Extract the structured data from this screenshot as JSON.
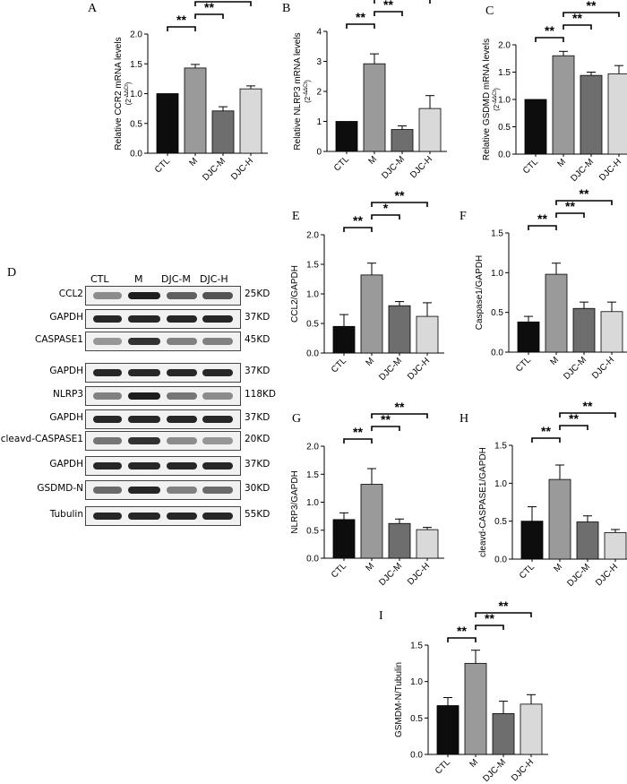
{
  "chart_data": [
    {
      "panel": "A",
      "type": "bar",
      "ylabel": "Relative CCR2 mRNA levels",
      "ylabel_sub": "(2",
      "categories": [
        "CTL",
        "M",
        "DJC-M",
        "DJC-H"
      ],
      "values": [
        1.0,
        1.43,
        0.71,
        1.08
      ],
      "errors": [
        0,
        0.06,
        0.07,
        0.05
      ],
      "ylim": [
        0,
        2.0
      ],
      "yticks": [
        "0.0",
        "0.5",
        "1.0",
        "1.5",
        "2.0"
      ],
      "sig": [
        {
          "from": 0,
          "to": 1,
          "label": "**"
        },
        {
          "from": 1,
          "to": 2,
          "label": "**"
        },
        {
          "from": 1,
          "to": 3,
          "label": "**"
        }
      ]
    },
    {
      "panel": "B",
      "type": "bar",
      "ylabel": "Relative NLRP3 mRNA levels",
      "ylabel_sub": "(2",
      "categories": [
        "CTL",
        "M",
        "DJC-M",
        "DJC-H"
      ],
      "values": [
        1.0,
        2.92,
        0.73,
        1.43
      ],
      "errors": [
        0,
        0.33,
        0.12,
        0.43
      ],
      "ylim": [
        0,
        4
      ],
      "yticks": [
        "0",
        "1",
        "2",
        "3",
        "4"
      ],
      "sig": [
        {
          "from": 0,
          "to": 1,
          "label": "**"
        },
        {
          "from": 1,
          "to": 2,
          "label": "**"
        },
        {
          "from": 1,
          "to": 3,
          "label": "**"
        }
      ]
    },
    {
      "panel": "C",
      "type": "bar",
      "ylabel": "Relative GSDMD mRNA levels",
      "ylabel_sub": "(2",
      "categories": [
        "CTL",
        "M",
        "DJC-M",
        "DJC-H"
      ],
      "values": [
        1.0,
        1.8,
        1.44,
        1.47
      ],
      "errors": [
        0,
        0.08,
        0.06,
        0.15
      ],
      "ylim": [
        0,
        2.0
      ],
      "yticks": [
        "0.0",
        "0.5",
        "1.0",
        "1.5",
        "2.0"
      ],
      "sig": [
        {
          "from": 0,
          "to": 1,
          "label": "**"
        },
        {
          "from": 1,
          "to": 2,
          "label": "**"
        },
        {
          "from": 1,
          "to": 3,
          "label": "**"
        }
      ]
    },
    {
      "panel": "E",
      "type": "bar",
      "ylabel": "CCL2/GAPDH",
      "categories": [
        "CTL",
        "M",
        "DJC-M",
        "DJC-H"
      ],
      "values": [
        0.45,
        1.32,
        0.8,
        0.62
      ],
      "errors": [
        0.2,
        0.2,
        0.07,
        0.23
      ],
      "ylim": [
        0,
        2.0
      ],
      "yticks": [
        "0.0",
        "0.5",
        "1.0",
        "1.5",
        "2.0"
      ],
      "sig": [
        {
          "from": 0,
          "to": 1,
          "label": "**"
        },
        {
          "from": 1,
          "to": 2,
          "label": "*"
        },
        {
          "from": 1,
          "to": 3,
          "label": "**"
        }
      ]
    },
    {
      "panel": "F",
      "type": "bar",
      "ylabel": "Caspase1/GAPDH",
      "categories": [
        "CTL",
        "M",
        "DJC-M",
        "DJC-H"
      ],
      "values": [
        0.38,
        0.98,
        0.55,
        0.51
      ],
      "errors": [
        0.07,
        0.14,
        0.08,
        0.12
      ],
      "ylim": [
        0,
        1.5
      ],
      "yticks": [
        "0.0",
        "0.5",
        "1.0",
        "1.5"
      ],
      "sig": [
        {
          "from": 0,
          "to": 1,
          "label": "**"
        },
        {
          "from": 1,
          "to": 2,
          "label": "**"
        },
        {
          "from": 1,
          "to": 3,
          "label": "**"
        }
      ]
    },
    {
      "panel": "G",
      "type": "bar",
      "ylabel": "NLRP3/GAPDH",
      "categories": [
        "CTL",
        "M",
        "DJC-M",
        "DJC-H"
      ],
      "values": [
        0.69,
        1.32,
        0.62,
        0.51
      ],
      "errors": [
        0.12,
        0.28,
        0.08,
        0.04
      ],
      "ylim": [
        0,
        2.0
      ],
      "yticks": [
        "0.0",
        "0.5",
        "1.0",
        "1.5",
        "2.0"
      ],
      "sig": [
        {
          "from": 0,
          "to": 1,
          "label": "**"
        },
        {
          "from": 1,
          "to": 2,
          "label": "**"
        },
        {
          "from": 1,
          "to": 3,
          "label": "**"
        }
      ]
    },
    {
      "panel": "H",
      "type": "bar",
      "ylabel": "cleavd-CASPASE1/GAPDH",
      "categories": [
        "CTL",
        "M",
        "DJC-M",
        "DJC-H"
      ],
      "values": [
        0.5,
        1.05,
        0.49,
        0.35
      ],
      "errors": [
        0.19,
        0.19,
        0.08,
        0.04
      ],
      "ylim": [
        0,
        1.5
      ],
      "yticks": [
        "0.0",
        "0.5",
        "1.0",
        "1.5"
      ],
      "sig": [
        {
          "from": 0,
          "to": 1,
          "label": "**"
        },
        {
          "from": 1,
          "to": 2,
          "label": "**"
        },
        {
          "from": 1,
          "to": 3,
          "label": "**"
        }
      ]
    },
    {
      "panel": "I",
      "type": "bar",
      "ylabel": "GSMDM-N/Tubulin",
      "categories": [
        "CTL",
        "M",
        "DJC-M",
        "DJC-H"
      ],
      "values": [
        0.67,
        1.25,
        0.56,
        0.69
      ],
      "errors": [
        0.11,
        0.18,
        0.17,
        0.13
      ],
      "ylim": [
        0,
        1.5
      ],
      "yticks": [
        "0.0",
        "0.5",
        "1.0",
        "1.5"
      ],
      "sig": [
        {
          "from": 0,
          "to": 1,
          "label": "**"
        },
        {
          "from": 1,
          "to": 2,
          "label": "**"
        },
        {
          "from": 1,
          "to": 3,
          "label": "**"
        }
      ]
    }
  ],
  "western_blot": {
    "panel": "D",
    "lanes": [
      "CTL",
      "M",
      "DJC-M",
      "DJC-H"
    ],
    "rows": [
      {
        "label": "CCL2",
        "size": "25KD",
        "intensity": [
          0.45,
          0.95,
          0.65,
          0.7
        ]
      },
      {
        "label": "GAPDH",
        "size": "37KD",
        "intensity": [
          0.9,
          0.9,
          0.9,
          0.9
        ]
      },
      {
        "label": "CASPASE1",
        "size": "45KD",
        "intensity": [
          0.4,
          0.85,
          0.5,
          0.5
        ]
      },
      {
        "label": "GAPDH",
        "size": "37KD",
        "intensity": [
          0.9,
          0.9,
          0.9,
          0.9
        ]
      },
      {
        "label": "NLRP3",
        "size": "118KD",
        "intensity": [
          0.5,
          0.95,
          0.55,
          0.45
        ]
      },
      {
        "label": "GAPDH",
        "size": "37KD",
        "intensity": [
          0.9,
          0.9,
          0.9,
          0.9
        ]
      },
      {
        "label": "cleavd-CASPASE1",
        "size": "20KD",
        "intensity": [
          0.55,
          0.85,
          0.45,
          0.4
        ]
      },
      {
        "label": "GAPDH",
        "size": "37KD",
        "intensity": [
          0.9,
          0.9,
          0.9,
          0.9
        ]
      },
      {
        "label": "GSDMD-N",
        "size": "30KD",
        "intensity": [
          0.6,
          0.9,
          0.5,
          0.6
        ]
      },
      {
        "label": "Tubulin",
        "size": "55KD",
        "intensity": [
          0.9,
          0.9,
          0.9,
          0.9
        ]
      }
    ]
  },
  "bar_colors": [
    "#0d0d0d",
    "#9a9a9a",
    "#6e6e6e",
    "#d9d9d9"
  ]
}
